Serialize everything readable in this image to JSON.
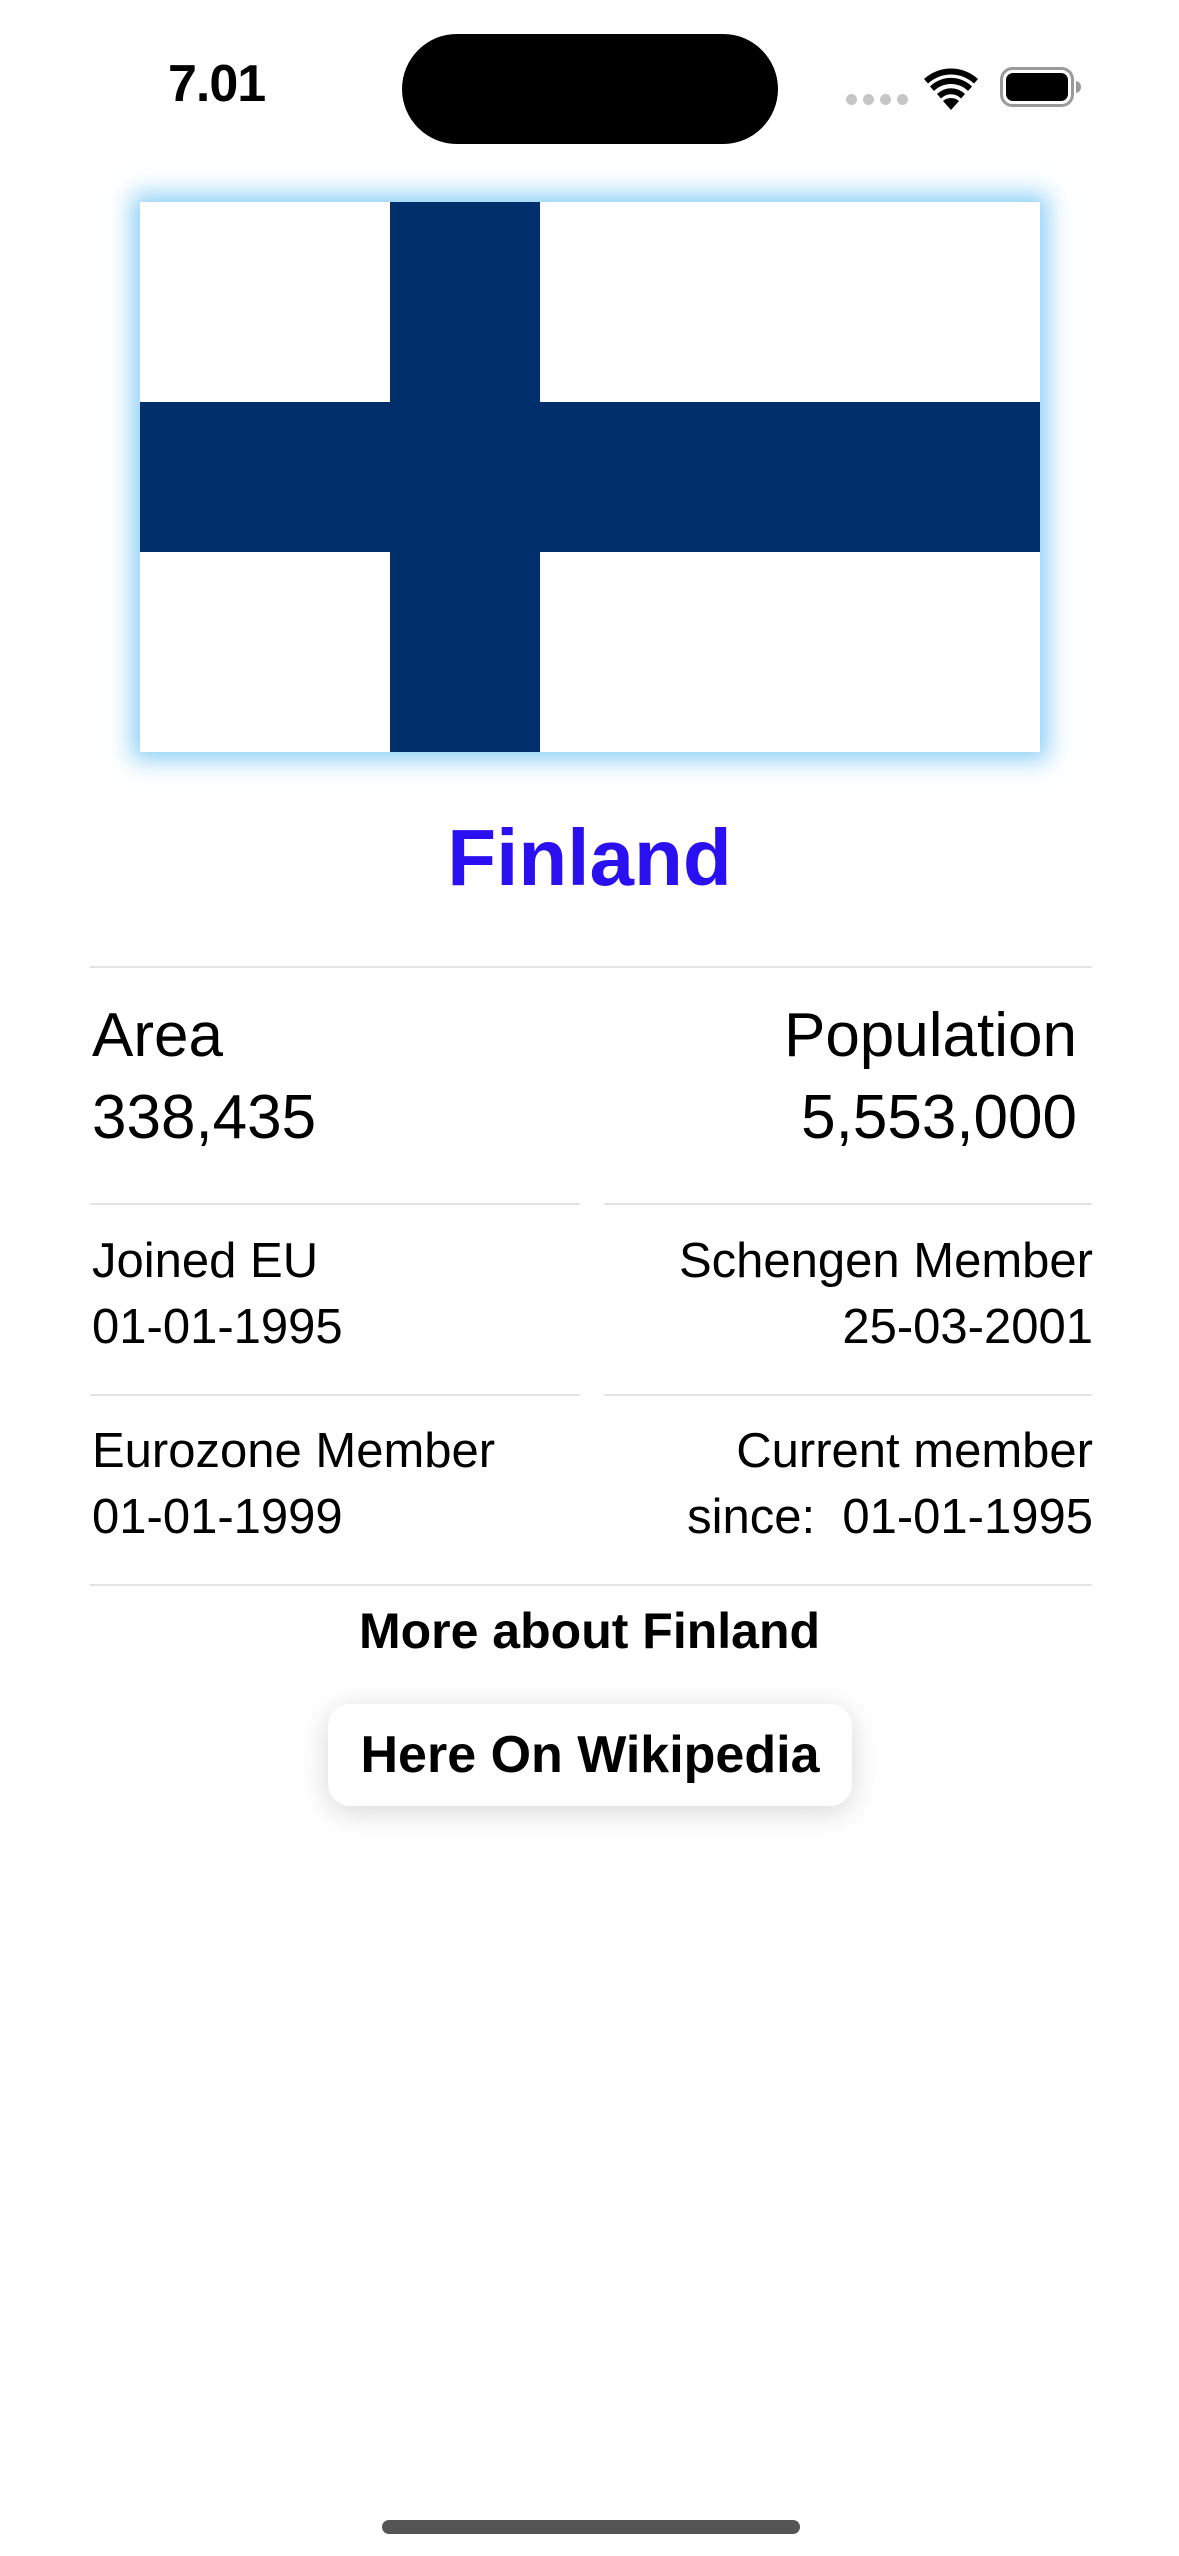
{
  "status_bar": {
    "time": "7.01",
    "icons": [
      "cellular-signal-icon",
      "wifi-icon",
      "battery-icon"
    ]
  },
  "flag": {
    "icon": "finland-flag-icon",
    "cross_color": "#002F6C",
    "background_color": "#FFFFFF",
    "glow_color": "#78C8F5"
  },
  "country": {
    "name": "Finland",
    "name_color": "#2A10F0"
  },
  "stats": {
    "area_label": "Area",
    "area_value": "338,435",
    "population_label": "Population",
    "population_value": "5,553,000"
  },
  "membership": {
    "joined_eu_label": "Joined EU",
    "joined_eu_date": "01-01-1995",
    "schengen_label": "Schengen Member",
    "schengen_date": "25-03-2001",
    "eurozone_label": "Eurozone Member",
    "eurozone_date": "01-01-1999",
    "current_label": "Current member",
    "current_since": "since:  01-01-1995"
  },
  "more": {
    "label": "More about Finland",
    "button_label": "Here On Wikipedia"
  }
}
